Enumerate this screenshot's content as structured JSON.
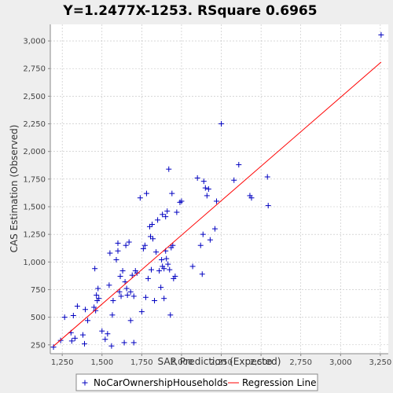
{
  "chart_data": {
    "type": "scatter",
    "title": "Y=1.2477X-1253.    RSquare 0.6965",
    "xlabel": "SAR Prediction (Expected)",
    "ylabel": "CAS Estimation (Observed)",
    "xlim": [
      1175,
      3300
    ],
    "ylim": [
      170,
      3150
    ],
    "xticks": [
      1250,
      1500,
      1750,
      2000,
      2250,
      2500,
      2750,
      3000,
      3250
    ],
    "xtick_labels": [
      "1,250",
      "1,500",
      "1,750",
      "2,000",
      "2,250",
      "2,500",
      "2,750",
      "3,000",
      "3,250"
    ],
    "yticks": [
      250,
      500,
      750,
      1000,
      1250,
      1500,
      1750,
      2000,
      2250,
      2500,
      2750,
      3000
    ],
    "ytick_labels": [
      "250",
      "500",
      "750",
      "1,000",
      "1,250",
      "1,500",
      "1,750",
      "2,000",
      "2,250",
      "2,500",
      "2,750",
      "3,000"
    ],
    "grid": true,
    "legend_position": "bottom",
    "colors": {
      "points": "#0000c0",
      "regression": "#ff0000",
      "grid": "#c0c0c0",
      "plot_background": "#ffffff",
      "page_background": "#eeeeee"
    },
    "series": [
      {
        "name": "NoCarOwnershipHouseholds",
        "kind": "points",
        "x": [
          1195,
          1240,
          1265,
          1305,
          1310,
          1320,
          1330,
          1345,
          1380,
          1390,
          1395,
          1410,
          1450,
          1455,
          1460,
          1465,
          1470,
          1475,
          1480,
          1500,
          1520,
          1535,
          1545,
          1550,
          1560,
          1565,
          1570,
          1590,
          1600,
          1600,
          1610,
          1615,
          1620,
          1630,
          1640,
          1645,
          1650,
          1655,
          1660,
          1670,
          1680,
          1680,
          1690,
          1700,
          1700,
          1710,
          1720,
          1740,
          1750,
          1760,
          1770,
          1775,
          1780,
          1790,
          1800,
          1805,
          1810,
          1815,
          1820,
          1830,
          1840,
          1850,
          1860,
          1870,
          1875,
          1880,
          1880,
          1890,
          1890,
          1900,
          1900,
          1905,
          1910,
          1915,
          1920,
          1925,
          1930,
          1935,
          1940,
          1945,
          1950,
          1960,
          1970,
          1990,
          2000,
          2070,
          2100,
          2120,
          2130,
          2135,
          2140,
          2150,
          2160,
          2170,
          2180,
          2210,
          2220,
          2250,
          2330,
          2360,
          2430,
          2440,
          2540,
          2545,
          3255
        ],
        "y": [
          230,
          290,
          500,
          360,
          285,
          515,
          310,
          600,
          340,
          260,
          570,
          470,
          590,
          940,
          560,
          700,
          650,
          760,
          670,
          375,
          300,
          350,
          790,
          1080,
          240,
          520,
          650,
          1020,
          1170,
          1100,
          730,
          870,
          690,
          920,
          270,
          820,
          1150,
          760,
          700,
          1180,
          730,
          470,
          880,
          270,
          690,
          920,
          900,
          1580,
          550,
          1120,
          1150,
          680,
          1620,
          850,
          1320,
          1230,
          930,
          1340,
          1210,
          650,
          1090,
          1380,
          920,
          770,
          1020,
          1430,
          960,
          940,
          670,
          1410,
          1100,
          1030,
          1460,
          980,
          1840,
          930,
          520,
          1130,
          1620,
          1150,
          850,
          870,
          1450,
          1540,
          1550,
          960,
          1760,
          1150,
          890,
          1250,
          1730,
          1670,
          1600,
          1660,
          1200,
          1300,
          1550,
          2250,
          1740,
          1880,
          1600,
          1580,
          1770,
          1510,
          3055
        ]
      },
      {
        "name": "Regression Line",
        "kind": "line",
        "slope": 1.2477,
        "intercept": -1253,
        "x_range": [
          1195,
          3255
        ]
      }
    ]
  }
}
